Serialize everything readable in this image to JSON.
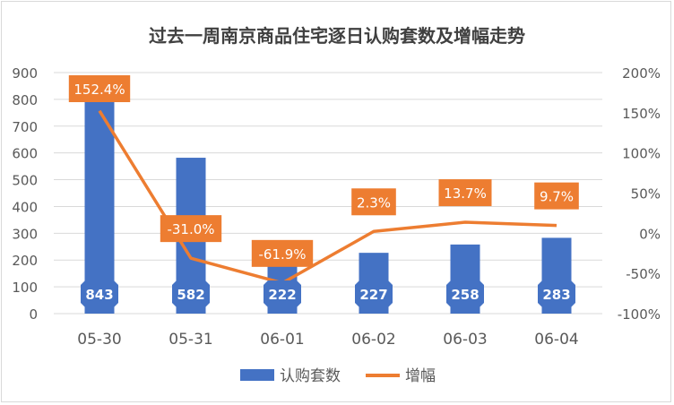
{
  "chart_data": {
    "type": "bar",
    "title": "过去一周南京商品住宅逐日认购套数及增幅走势",
    "categories": [
      "05-30",
      "05-31",
      "06-01",
      "06-02",
      "06-03",
      "06-04"
    ],
    "series": [
      {
        "name": "认购套数",
        "type": "bar",
        "axis": "left",
        "color": "#4472c4",
        "values": [
          843,
          582,
          222,
          227,
          258,
          283
        ],
        "labels": [
          "843",
          "582",
          "222",
          "227",
          "258",
          "283"
        ]
      },
      {
        "name": "增幅",
        "type": "line",
        "axis": "right",
        "color": "#ed7d31",
        "values": [
          152.4,
          -31.0,
          -61.9,
          2.3,
          13.7,
          9.7
        ],
        "labels": [
          "152.4%",
          "-31.0%",
          "-61.9%",
          "2.3%",
          "13.7%",
          "9.7%"
        ]
      }
    ],
    "y_left": {
      "min": 0,
      "max": 900,
      "step": 100,
      "ticks": [
        "0",
        "100",
        "200",
        "300",
        "400",
        "500",
        "600",
        "700",
        "800",
        "900"
      ]
    },
    "y_right": {
      "min": -100,
      "max": 200,
      "step": 50,
      "ticks": [
        "-100%",
        "-50%",
        "0%",
        "50%",
        "100%",
        "150%",
        "200%"
      ]
    },
    "grid": true,
    "legend_position": "bottom"
  }
}
